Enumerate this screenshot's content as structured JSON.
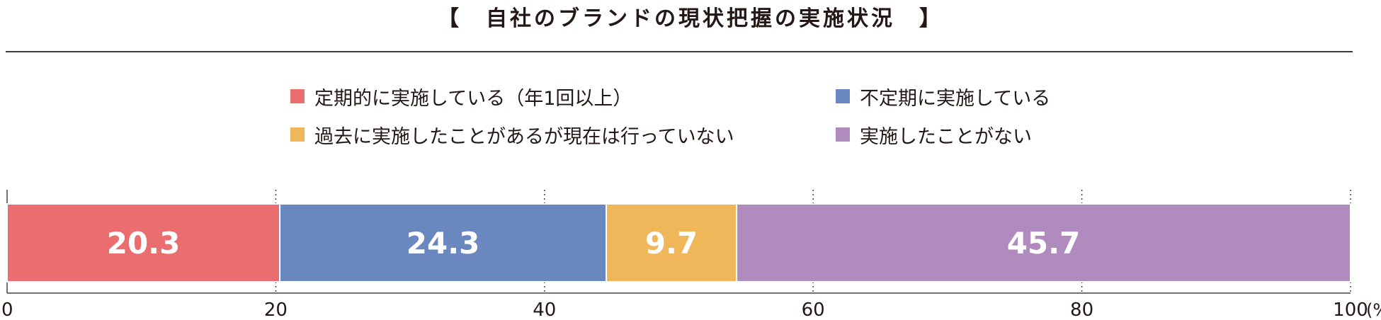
{
  "title": "【　自社のブランドの現状把握の実施状況　】",
  "chart_data": {
    "type": "bar",
    "orientation": "horizontal-stacked-100",
    "title": "【　自社のブランドの現状把握の実施状況　】",
    "series": [
      {
        "name": "定期的に実施している（年1回以上）",
        "value": 20.3,
        "color": "#ea6d6f"
      },
      {
        "name": "不定期に実施している",
        "value": 24.3,
        "color": "#6a88bf"
      },
      {
        "name": "過去に実施したことがあるが現在は行っていない",
        "value": 9.7,
        "color": "#efb65a"
      },
      {
        "name": "実施したことがない",
        "value": 45.7,
        "color": "#b08cbe"
      }
    ],
    "xlim": [
      0,
      100
    ],
    "ticks": [
      "0",
      "20",
      "40",
      "60",
      "80",
      "100"
    ],
    "unit": "(%)",
    "legend_position": "top",
    "grid": "dotted vertical"
  }
}
